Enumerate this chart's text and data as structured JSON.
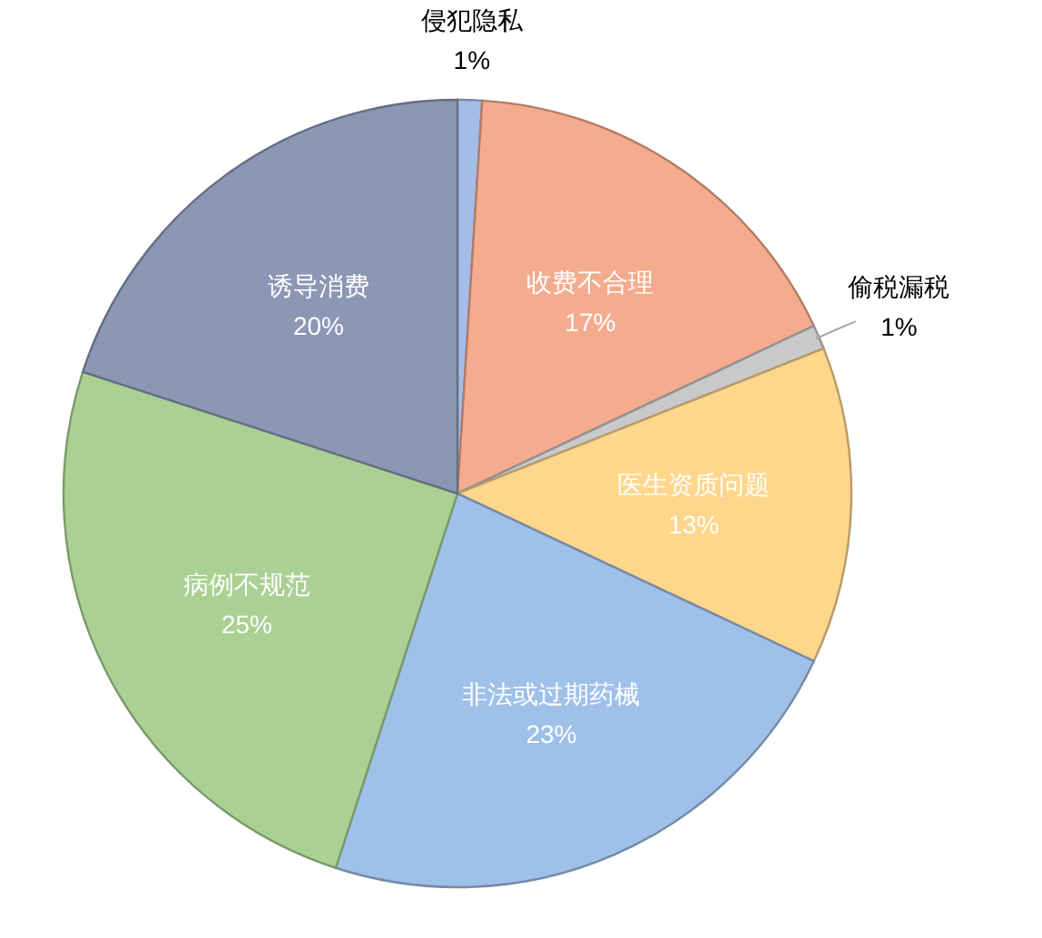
{
  "chart_data": {
    "type": "pie",
    "categories": [
      "侵犯隐私",
      "收费不合理",
      "偷税漏税",
      "医生资质问题",
      "非法或过期药械",
      "病例不规范",
      "诱导消费"
    ],
    "values": [
      1,
      17,
      1,
      13,
      23,
      25,
      20
    ],
    "value_labels": [
      "1%",
      "17%",
      "1%",
      "13%",
      "23%",
      "25%",
      "20%"
    ],
    "colors": [
      "#a4bde8",
      "#f5ab8e",
      "#c9c9c9",
      "#fed68c",
      "#9fc0e8",
      "#aad193",
      "#8c97b5"
    ]
  }
}
